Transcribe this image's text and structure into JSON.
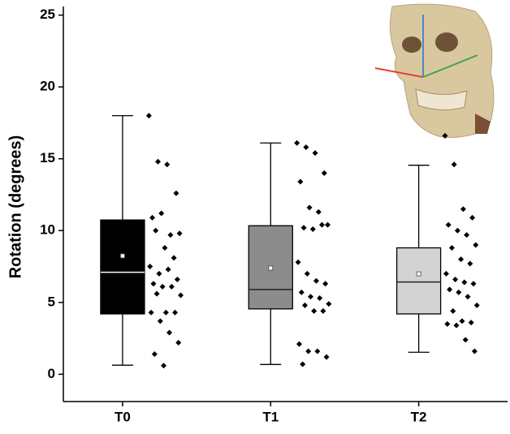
{
  "chart_data": {
    "type": "box",
    "ylabel": "Rotation (degrees)",
    "categories": [
      "T0",
      "T1",
      "T2"
    ],
    "ylim": [
      -1.9,
      25.6
    ],
    "yticks": [
      0,
      5,
      10,
      15,
      20,
      25
    ],
    "boxes": [
      {
        "min": 0.63,
        "q1": 4.2,
        "median": 7.1,
        "q3": 10.74,
        "max": 18.0,
        "mean": 8.24,
        "color": "#000000",
        "median_color": "#ffffff",
        "points": [
          18.0,
          14.8,
          14.6,
          12.6,
          10.9,
          11.2,
          9.7,
          9.8,
          10.0,
          8.8,
          8.1,
          7.5,
          7.0,
          7.3,
          6.6,
          6.3,
          6.1,
          6.1,
          5.5,
          5.6,
          4.3,
          4.3,
          4.3,
          3.7,
          2.9,
          2.2,
          1.4,
          0.6
        ]
      },
      {
        "min": 0.68,
        "q1": 4.55,
        "median": 5.9,
        "q3": 10.34,
        "max": 16.1,
        "mean": 7.39,
        "color": "#8c8c8c",
        "median_color": "#222222",
        "points": [
          16.1,
          15.8,
          15.4,
          14.0,
          13.4,
          11.6,
          11.3,
          10.4,
          10.2,
          10.1,
          10.4,
          7.8,
          7.0,
          6.5,
          6.3,
          5.7,
          5.4,
          5.3,
          4.9,
          4.8,
          4.4,
          4.4,
          2.1,
          1.6,
          1.6,
          1.2,
          0.7
        ]
      },
      {
        "min": 1.53,
        "q1": 4.2,
        "median": 6.42,
        "q3": 8.8,
        "max": 14.55,
        "mean": 6.99,
        "color": "#d3d3d3",
        "median_color": "#222222",
        "points": [
          16.6,
          14.6,
          11.5,
          10.9,
          10.4,
          10.0,
          9.7,
          9.0,
          8.8,
          8.0,
          7.7,
          7.0,
          6.6,
          6.4,
          6.3,
          5.9,
          5.7,
          5.4,
          4.8,
          4.4,
          3.7,
          3.6,
          3.5,
          3.4,
          2.4,
          1.6
        ]
      }
    ]
  }
}
